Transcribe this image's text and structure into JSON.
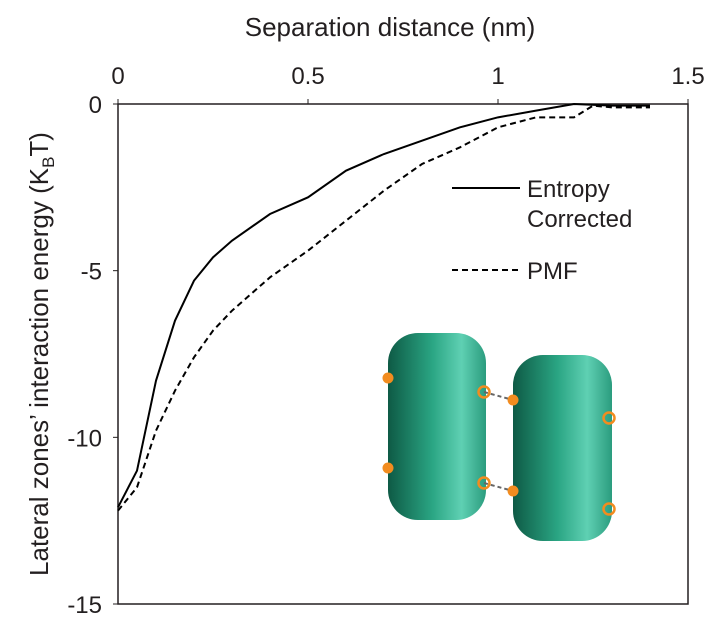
{
  "chart_data": {
    "type": "line",
    "x_label": "Separation distance (nm)",
    "y_label": [
      "Lateral zones’ interaction energy (K",
      "B",
      "T)"
    ],
    "xlim": [
      0,
      1.5
    ],
    "xticks": [
      0,
      0.5,
      1,
      1.5
    ],
    "ylim": [
      -15,
      0
    ],
    "yticks": [
      0,
      -5,
      -10,
      -15
    ],
    "series": [
      {
        "name": "Entropy Corrected",
        "color": "#000000",
        "dash": "solid",
        "x": [
          0,
          0.05,
          0.1,
          0.15,
          0.2,
          0.25,
          0.3,
          0.4,
          0.5,
          0.6,
          0.7,
          0.8,
          0.9,
          1.0,
          1.1,
          1.2,
          1.3,
          1.4
        ],
        "values": [
          -12.1,
          -11.0,
          -8.3,
          -6.5,
          -5.3,
          -4.6,
          -4.1,
          -3.3,
          -2.8,
          -2.0,
          -1.5,
          -1.1,
          -0.7,
          -0.4,
          -0.2,
          0,
          -0.05,
          -0.05
        ]
      },
      {
        "name": "PMF",
        "color": "#000000",
        "dash": "dashed",
        "x": [
          0,
          0.05,
          0.1,
          0.15,
          0.2,
          0.25,
          0.3,
          0.4,
          0.5,
          0.6,
          0.7,
          0.8,
          0.9,
          1.0,
          1.1,
          1.2,
          1.25,
          1.3,
          1.4
        ],
        "values": [
          -12.2,
          -11.5,
          -9.8,
          -8.6,
          -7.6,
          -6.8,
          -6.2,
          -5.2,
          -4.4,
          -3.5,
          -2.6,
          -1.8,
          -1.3,
          -0.7,
          -0.4,
          -0.4,
          -0.05,
          -0.1,
          -0.1
        ]
      }
    ]
  }
}
